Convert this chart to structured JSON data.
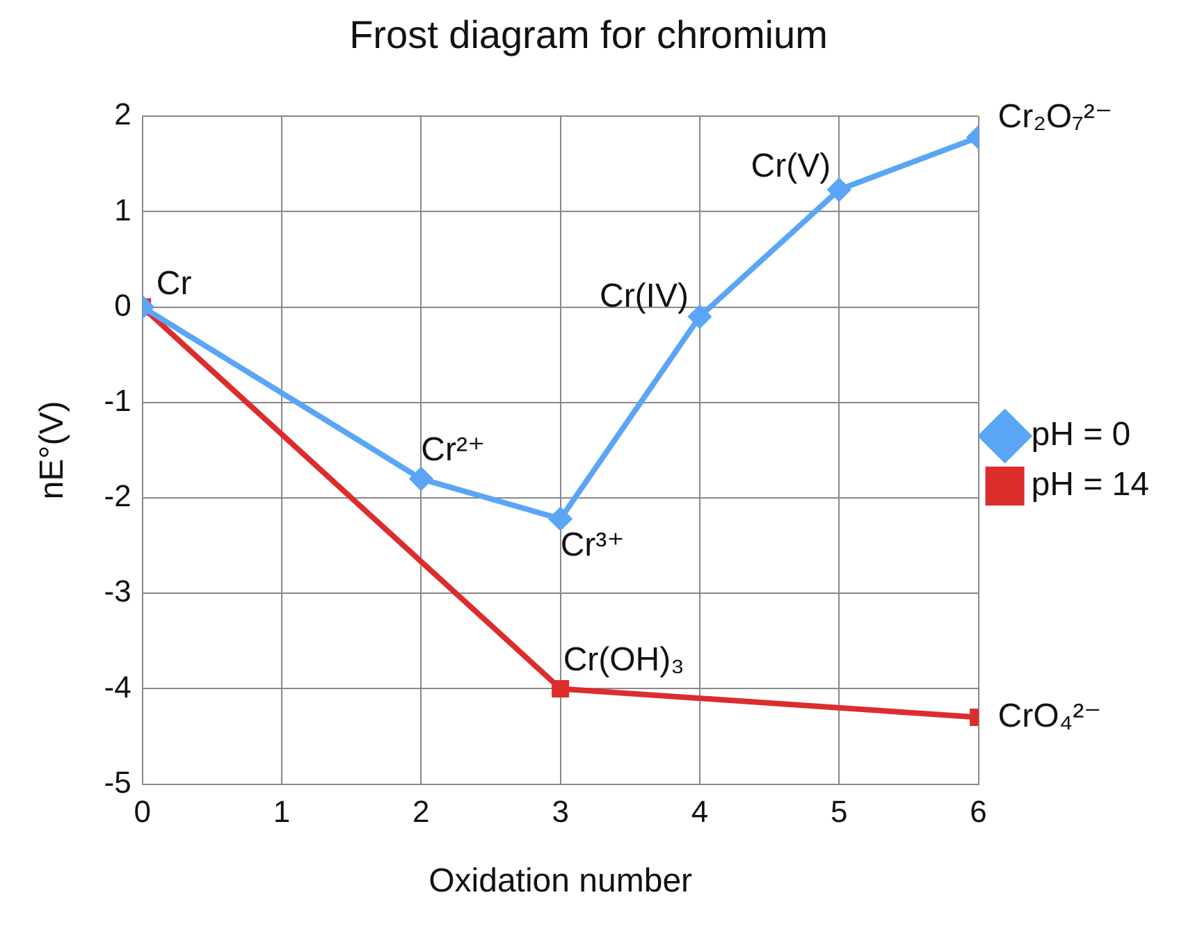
{
  "chart_data": {
    "type": "line",
    "title": "Frost diagram for chromium",
    "xlabel": "Oxidation number",
    "ylabel": "nE°(V)",
    "series": [
      {
        "name": "pH = 0",
        "color": "#5aa5f5",
        "marker": "diamond",
        "x": [
          0,
          2,
          3,
          4,
          5,
          6
        ],
        "values": [
          0,
          -1.8,
          -2.22,
          -0.1,
          1.23,
          1.78
        ]
      },
      {
        "name": "pH = 14",
        "color": "#dc2d2d",
        "marker": "square",
        "x": [
          0,
          3,
          6
        ],
        "values": [
          0,
          -4.0,
          -4.3
        ]
      }
    ],
    "xlim": [
      0,
      6
    ],
    "xticks": [
      0,
      1,
      2,
      3,
      4,
      5,
      6
    ],
    "ylim": [
      -5,
      2
    ],
    "yticks": [
      -5,
      -4,
      -3,
      -2,
      -1,
      0,
      1,
      2
    ],
    "grid": true,
    "legend": "right",
    "line_style": "solid",
    "annotations": [
      {
        "text": "Cr",
        "x": 0,
        "y": 0
      },
      {
        "text": "Cr²⁺",
        "x": 2,
        "y": -1.8
      },
      {
        "text": "Cr³⁺",
        "x": 3,
        "y": -2.22
      },
      {
        "text": "Cr(IV)",
        "x": 4,
        "y": -0.1
      },
      {
        "text": "Cr(V)",
        "x": 5,
        "y": 1.23
      },
      {
        "text": "Cr₂O₇²⁻",
        "x": 6,
        "y": 1.78
      },
      {
        "text": "Cr(OH)₃",
        "x": 3,
        "y": -4.0
      },
      {
        "text": "CrO₄²⁻",
        "x": 6,
        "y": -4.3
      }
    ]
  }
}
